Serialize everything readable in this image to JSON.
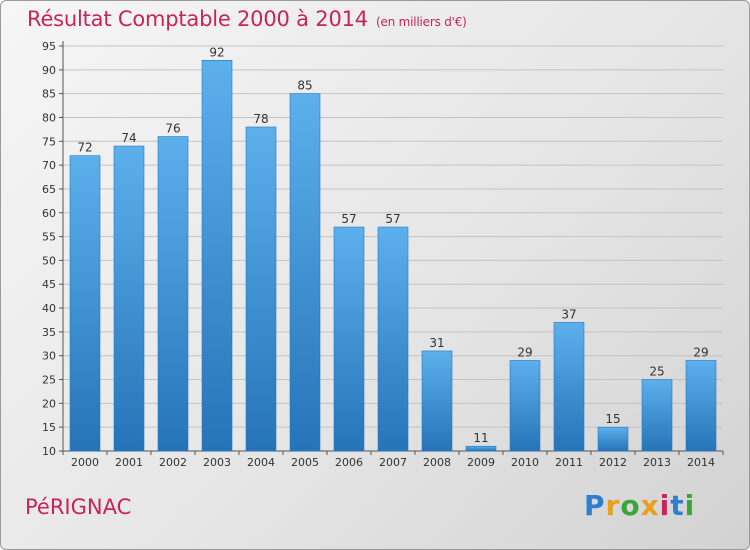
{
  "header": {
    "title": "Résultat Comptable 2000 à 2014",
    "subtitle": "(en milliers d'€)"
  },
  "footer": {
    "commune": "PéRIGNAC",
    "logo_letters": [
      {
        "ch": "P",
        "color": "#2f7fd0"
      },
      {
        "ch": "r",
        "color": "#e8a020"
      },
      {
        "ch": "o",
        "color": "#3aa53a"
      },
      {
        "ch": "x",
        "color": "#e8a020"
      },
      {
        "ch": "i",
        "color": "#c8245c"
      },
      {
        "ch": "t",
        "color": "#2f7fd0"
      },
      {
        "ch": "i",
        "color": "#3aa53a"
      }
    ]
  },
  "chart_data": {
    "type": "bar",
    "title": "Résultat Comptable 2000 à 2014",
    "categories": [
      "2000",
      "2001",
      "2002",
      "2003",
      "2004",
      "2005",
      "2006",
      "2007",
      "2008",
      "2009",
      "2010",
      "2011",
      "2012",
      "2013",
      "2014"
    ],
    "values": [
      72,
      74,
      76,
      92,
      78,
      85,
      57,
      57,
      31,
      11,
      29,
      37,
      15,
      25,
      29
    ],
    "ylim": [
      10,
      95
    ],
    "yticks": [
      10,
      15,
      20,
      25,
      30,
      35,
      40,
      45,
      50,
      55,
      60,
      65,
      70,
      75,
      80,
      85,
      90,
      95
    ],
    "grid": true,
    "bar_color": "#4a9fe0"
  }
}
